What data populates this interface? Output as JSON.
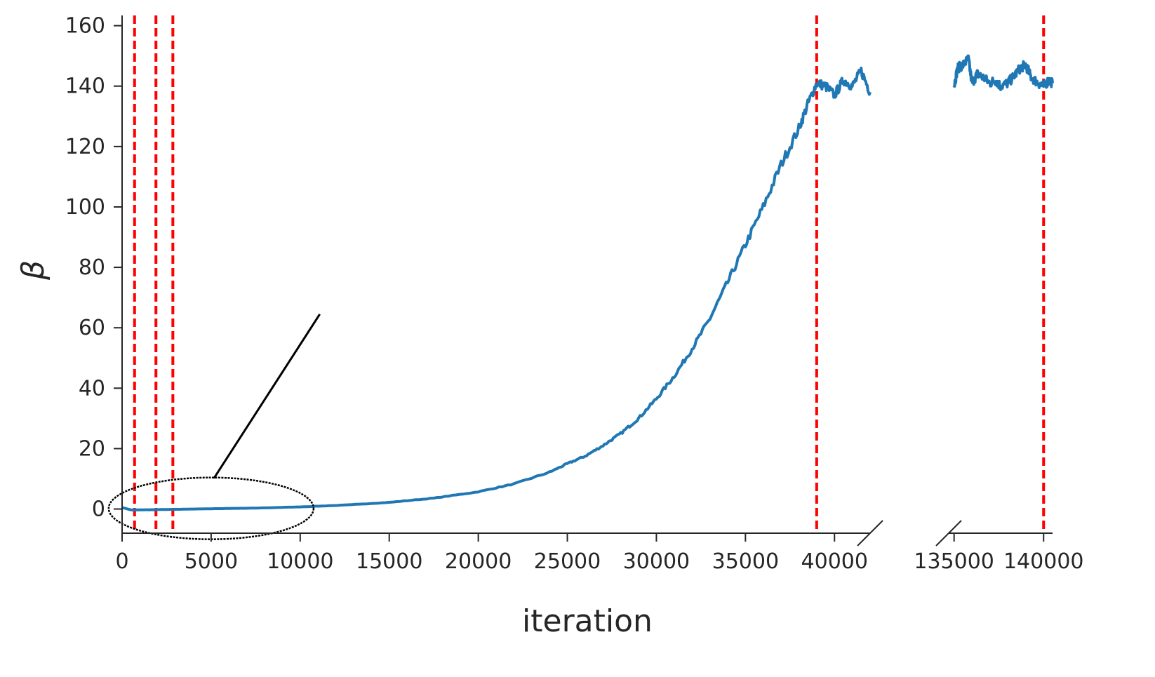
{
  "chart_data": {
    "type": "line",
    "title": "",
    "xlabel": "iteration",
    "ylabel": "β",
    "ylim": [
      -8,
      162
    ],
    "yticks": [
      0,
      20,
      40,
      60,
      80,
      100,
      120,
      140,
      160
    ],
    "ytick_labels": [
      "0",
      "20",
      "40",
      "60",
      "80",
      "100",
      "120",
      "140",
      "160"
    ],
    "grid": false,
    "legend": "none",
    "colors": {
      "line": "#1f77b4",
      "vline": "#ff0000",
      "axis": "#262626",
      "annotation": "#000000"
    },
    "segments": [
      {
        "xlim": [
          0,
          42000
        ],
        "xticks": [
          0,
          5000,
          10000,
          15000,
          20000,
          25000,
          30000,
          35000,
          40000
        ],
        "xtick_labels": [
          "0",
          "5000",
          "10000",
          "15000",
          "20000",
          "25000",
          "30000",
          "35000",
          "40000"
        ]
      },
      {
        "xlim": [
          134700,
          140500
        ],
        "xticks": [
          135000,
          140000
        ],
        "xtick_labels": [
          "135000",
          "140000"
        ]
      }
    ],
    "series": [
      {
        "segment": 0,
        "x": [
          0,
          500,
          1000,
          2000,
          3000,
          5000,
          7500,
          10000,
          12500,
          15000,
          17500,
          20000,
          22000,
          24000,
          25000,
          26000,
          27000,
          28000,
          29000,
          30000,
          31000,
          32000,
          33000,
          34000,
          35000,
          36000,
          37000,
          38000,
          38500,
          39000,
          39500,
          40000,
          40500,
          41000,
          41500,
          42000
        ],
        "y": [
          0.5,
          -0.3,
          -0.3,
          -0.2,
          -0.1,
          0.1,
          0.3,
          0.7,
          1.3,
          2.2,
          3.6,
          5.7,
          8.3,
          12.2,
          15.0,
          17.5,
          21.0,
          25.0,
          30.0,
          36.5,
          44.0,
          53.0,
          63.0,
          75.0,
          87.5,
          100.0,
          114.0,
          126.0,
          134.0,
          141.0,
          140.0,
          137.0,
          142.0,
          140.0,
          145.0,
          138.0
        ]
      },
      {
        "segment": 1,
        "x": [
          135000,
          135200,
          135500,
          135800,
          136000,
          136300,
          136600,
          137000,
          137300,
          137600,
          138000,
          138300,
          138700,
          139000,
          139300,
          139700,
          140000,
          140300,
          140500
        ],
        "y": [
          140.0,
          146.0,
          147.0,
          149.0,
          141.0,
          144.0,
          143.0,
          141.0,
          142.0,
          140.0,
          141.0,
          143.0,
          146.0,
          147.0,
          143.0,
          141.0,
          140.0,
          142.0,
          141.0
        ]
      }
    ],
    "vlines": [
      {
        "segment": 0,
        "x": 700
      },
      {
        "segment": 0,
        "x": 1900
      },
      {
        "segment": 0,
        "x": 2850
      },
      {
        "segment": 0,
        "x": 39000
      },
      {
        "segment": 1,
        "x": 140000
      }
    ]
  }
}
